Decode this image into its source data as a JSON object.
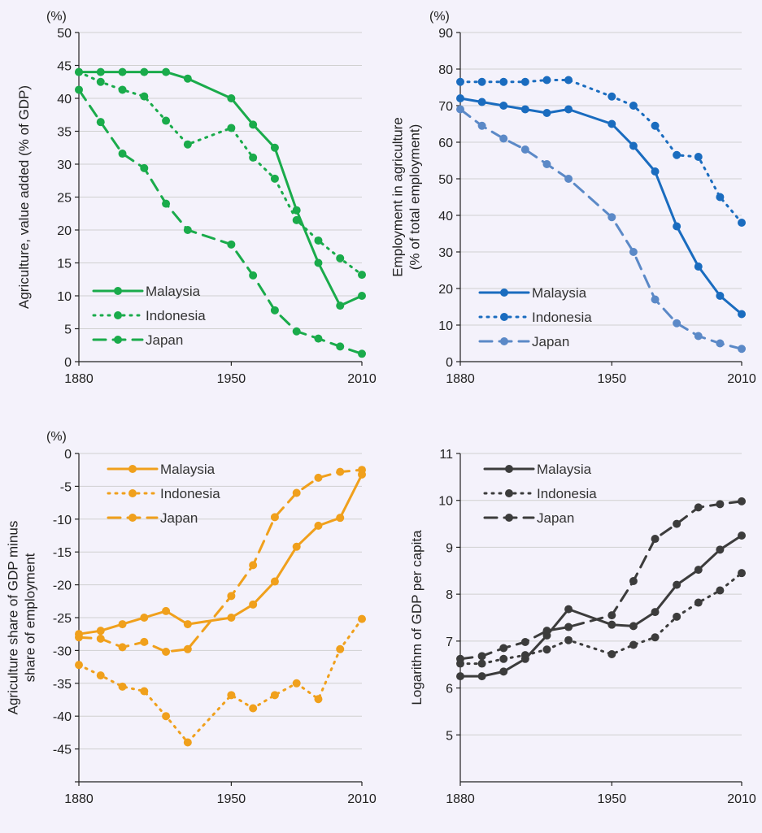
{
  "colors": {
    "green": "#1aab4b",
    "blue": "#1a6cbf",
    "lightblue": "#5b89c7",
    "orange": "#f0a01c",
    "dark": "#3c3c3c"
  },
  "chart_data": [
    {
      "id": "p1",
      "type": "line",
      "title": "",
      "unit_label": "(%)",
      "ylabel": "Agriculture, value added (% of GDP)",
      "ylim": [
        0,
        50
      ],
      "yticks": [
        0,
        5,
        10,
        15,
        20,
        25,
        30,
        35,
        40,
        45,
        50
      ],
      "xlim": [
        1880,
        2010
      ],
      "xticks": [
        1880,
        1950,
        2010
      ],
      "grid": true,
      "legend": "bottom-left",
      "series": [
        {
          "name": "Malaysia",
          "style": "solid",
          "color": "green",
          "x": [
            1880,
            1890,
            1900,
            1910,
            1920,
            1930,
            1950,
            1960,
            1970,
            1980,
            1990,
            2000,
            2010
          ],
          "y": [
            44,
            44,
            44,
            44,
            44,
            43,
            40,
            36,
            32.5,
            23,
            15,
            8.5,
            10
          ]
        },
        {
          "name": "Indonesia",
          "style": "dotted",
          "color": "green",
          "x": [
            1880,
            1890,
            1900,
            1910,
            1920,
            1930,
            1950,
            1960,
            1970,
            1980,
            1990,
            2000,
            2010
          ],
          "y": [
            44,
            42.5,
            41.3,
            40.3,
            36.6,
            33,
            35.5,
            31,
            27.8,
            21.5,
            18.4,
            15.7,
            13.2
          ]
        },
        {
          "name": "Japan",
          "style": "dashed",
          "color": "green",
          "x": [
            1880,
            1890,
            1900,
            1910,
            1920,
            1930,
            1950,
            1960,
            1970,
            1980,
            1990,
            2000,
            2010
          ],
          "y": [
            41.3,
            36.4,
            31.6,
            29.4,
            24,
            20,
            17.8,
            13.1,
            7.8,
            4.6,
            3.5,
            2.3,
            1.2
          ]
        }
      ]
    },
    {
      "id": "p2",
      "type": "line",
      "title": "",
      "unit_label": "(%)",
      "ylabel": "Employment in agriculture (% of total employment)",
      "ylabel_lines": [
        "Employment in agriculture",
        "(% of total employment)"
      ],
      "ylim": [
        0,
        90
      ],
      "yticks": [
        0,
        10,
        20,
        30,
        40,
        50,
        60,
        70,
        80,
        90
      ],
      "xlim": [
        1880,
        2010
      ],
      "xticks": [
        1880,
        1950,
        2010
      ],
      "grid": true,
      "legend": "bottom-left",
      "series": [
        {
          "name": "Malaysia",
          "style": "solid",
          "color": "blue",
          "x": [
            1880,
            1890,
            1900,
            1910,
            1920,
            1930,
            1950,
            1960,
            1970,
            1980,
            1990,
            2000,
            2010
          ],
          "y": [
            72,
            71,
            70,
            69,
            68,
            69,
            65,
            59,
            52,
            37,
            26,
            18,
            13
          ]
        },
        {
          "name": "Indonesia",
          "style": "dotted",
          "color": "blue",
          "x": [
            1880,
            1890,
            1900,
            1910,
            1920,
            1930,
            1950,
            1960,
            1970,
            1980,
            1990,
            2000,
            2010
          ],
          "y": [
            76.5,
            76.5,
            76.5,
            76.5,
            77,
            77,
            72.5,
            70,
            64.5,
            56.5,
            56,
            45,
            38
          ]
        },
        {
          "name": "Japan",
          "style": "dashed",
          "color": "lightblue",
          "x": [
            1880,
            1890,
            1900,
            1910,
            1920,
            1930,
            1950,
            1960,
            1970,
            1980,
            1990,
            2000,
            2010
          ],
          "y": [
            69,
            64.5,
            61,
            58,
            54,
            50,
            39.5,
            30,
            17,
            10.5,
            7,
            5,
            3.5
          ]
        }
      ]
    },
    {
      "id": "p3",
      "type": "line",
      "title": "",
      "unit_label": "(%)",
      "ylabel": "Agriculture share of GDP minus share of employment",
      "ylabel_lines": [
        "Agriculture share of GDP minus",
        "share of employment"
      ],
      "ylim": [
        -50,
        0
      ],
      "yticks": [
        0,
        -5,
        -10,
        -15,
        -20,
        -25,
        -30,
        -35,
        -40,
        -45,
        -50
      ],
      "ytick_labels": [
        "0",
        "-5",
        "-10",
        "-15",
        "-20",
        "-25",
        "-30",
        "-35",
        "-40",
        "-45",
        ""
      ],
      "xlim": [
        1880,
        2010
      ],
      "xticks": [
        1880,
        1950,
        2010
      ],
      "grid": true,
      "legend": "top-left",
      "series": [
        {
          "name": "Malaysia",
          "style": "solid",
          "color": "orange",
          "x": [
            1880,
            1890,
            1900,
            1910,
            1920,
            1930,
            1950,
            1960,
            1970,
            1980,
            1990,
            2000,
            2010
          ],
          "y": [
            -27.5,
            -27,
            -26,
            -25,
            -24,
            -26,
            -25,
            -23,
            -19.5,
            -14.2,
            -11,
            -9.8,
            -3.2
          ]
        },
        {
          "name": "Indonesia",
          "style": "dotted",
          "color": "orange",
          "x": [
            1880,
            1890,
            1900,
            1910,
            1920,
            1930,
            1950,
            1960,
            1970,
            1980,
            1990,
            2000,
            2010
          ],
          "y": [
            -32.2,
            -33.8,
            -35.5,
            -36.2,
            -40,
            -44,
            -36.8,
            -38.8,
            -36.8,
            -35,
            -37.4,
            -29.8,
            -25.2
          ]
        },
        {
          "name": "Japan",
          "style": "dashed",
          "color": "orange",
          "x": [
            1880,
            1890,
            1900,
            1910,
            1920,
            1930,
            1950,
            1960,
            1970,
            1980,
            1990,
            2000,
            2010
          ],
          "y": [
            -28,
            -28.2,
            -29.5,
            -28.7,
            -30.2,
            -29.8,
            -21.7,
            -17,
            -9.7,
            -6,
            -3.7,
            -2.8,
            -2.5
          ]
        }
      ]
    },
    {
      "id": "p4",
      "type": "line",
      "title": "",
      "unit_label": "",
      "ylabel": "Logarithm of GDP per capita",
      "ylim": [
        4,
        11
      ],
      "yticks": [
        5,
        6,
        7,
        8,
        9,
        10,
        11
      ],
      "xlim": [
        1880,
        2010
      ],
      "xticks": [
        1880,
        1950,
        2010
      ],
      "grid": true,
      "legend": "top-left",
      "series": [
        {
          "name": "Malaysia",
          "style": "solid",
          "color": "dark",
          "x": [
            1880,
            1890,
            1900,
            1910,
            1920,
            1930,
            1950,
            1960,
            1970,
            1980,
            1990,
            2000,
            2010
          ],
          "y": [
            6.25,
            6.25,
            6.35,
            6.62,
            7.12,
            7.68,
            7.35,
            7.32,
            7.62,
            8.2,
            8.52,
            8.95,
            9.25
          ]
        },
        {
          "name": "Indonesia",
          "style": "dotted",
          "color": "dark",
          "x": [
            1880,
            1890,
            1900,
            1910,
            1920,
            1930,
            1950,
            1960,
            1970,
            1980,
            1990,
            2000,
            2010
          ],
          "y": [
            6.52,
            6.52,
            6.62,
            6.7,
            6.82,
            7.02,
            6.72,
            6.92,
            7.08,
            7.52,
            7.82,
            8.08,
            8.45
          ]
        },
        {
          "name": "Japan",
          "style": "dashed",
          "color": "dark",
          "x": [
            1880,
            1890,
            1900,
            1910,
            1920,
            1930,
            1950,
            1960,
            1970,
            1980,
            1990,
            2000,
            2010
          ],
          "y": [
            6.62,
            6.68,
            6.85,
            6.98,
            7.22,
            7.3,
            7.55,
            8.28,
            9.18,
            9.5,
            9.85,
            9.92,
            9.98
          ]
        }
      ]
    }
  ]
}
